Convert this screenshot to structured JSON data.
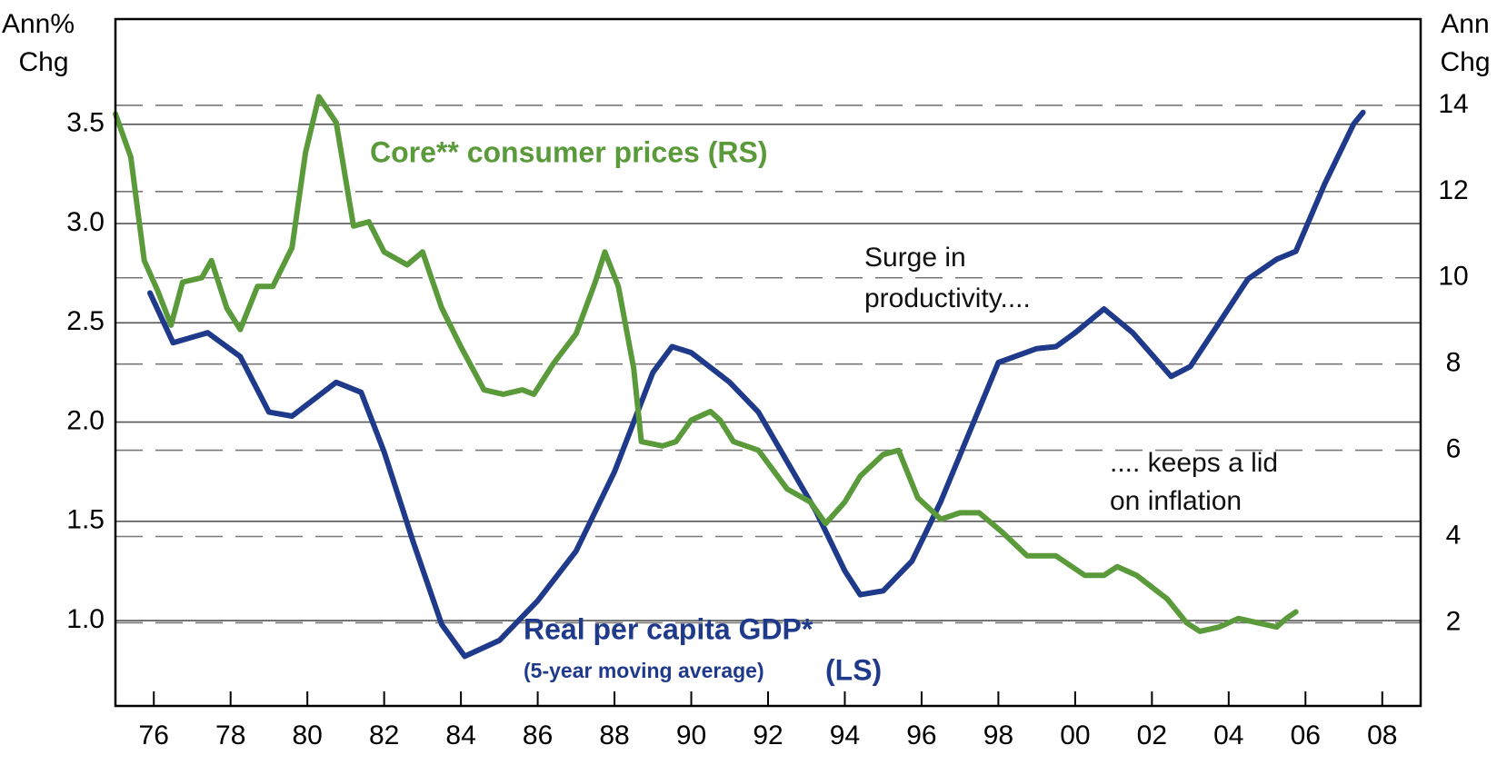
{
  "chart_data": {
    "type": "line",
    "y_axis_label": [
      "Ann%",
      "Chg"
    ],
    "y2_axis_label": [
      "Ann",
      "Chg"
    ],
    "xlim": [
      1975,
      2009
    ],
    "xticks": [
      {
        "value": 1976,
        "label": "76"
      },
      {
        "value": 1978,
        "label": "78"
      },
      {
        "value": 1980,
        "label": "80"
      },
      {
        "value": 1982,
        "label": "82"
      },
      {
        "value": 1984,
        "label": "84"
      },
      {
        "value": 1986,
        "label": "86"
      },
      {
        "value": 1988,
        "label": "88"
      },
      {
        "value": 1990,
        "label": "90"
      },
      {
        "value": 1992,
        "label": "92"
      },
      {
        "value": 1994,
        "label": "94"
      },
      {
        "value": 1996,
        "label": "96"
      },
      {
        "value": 1998,
        "label": "98"
      },
      {
        "value": 2000,
        "label": "00"
      },
      {
        "value": 2002,
        "label": "02"
      },
      {
        "value": 2004,
        "label": "04"
      },
      {
        "value": 2006,
        "label": "06"
      },
      {
        "value": 2008,
        "label": "08"
      }
    ],
    "ylim": [
      0.57,
      4.03
    ],
    "yticks": [
      {
        "value": 1,
        "label": "1.0"
      },
      1.5,
      {
        "value": 2,
        "label": "2.0"
      },
      2.5,
      {
        "value": 3,
        "label": "3.0"
      },
      3.5
    ],
    "y2lim": [
      0.07,
      16
    ],
    "y2ticks": [
      2,
      4,
      6,
      8,
      10,
      12,
      14
    ],
    "grid": true,
    "series": [
      {
        "name": "Real per capita GDP* (5-year moving average)(LS)",
        "color": "#1f3a8a",
        "axis": "y",
        "x": [
          1975.9,
          1976.5,
          1977.4,
          1978.25,
          1979.0,
          1979.6,
          1980.75,
          1981.4,
          1982.0,
          1982.75,
          1983.5,
          1984.1,
          1985.0,
          1986.0,
          1987.0,
          1988.0,
          1989.0,
          1989.5,
          1990.0,
          1991.0,
          1991.75,
          1992.5,
          1993.25,
          1994.0,
          1994.4,
          1995.0,
          1995.75,
          1996.5,
          1997.25,
          1998.0,
          1999.0,
          1999.5,
          2000.0,
          2000.75,
          2001.5,
          2002.5,
          2003.0,
          2003.75,
          2004.5,
          2005.25,
          2005.75,
          2006.5,
          2007.25,
          2007.5
        ],
        "values": [
          2.65,
          2.4,
          2.45,
          2.33,
          2.05,
          2.03,
          2.2,
          2.15,
          1.85,
          1.4,
          0.98,
          0.82,
          0.9,
          1.1,
          1.35,
          1.75,
          2.25,
          2.38,
          2.35,
          2.2,
          2.05,
          1.8,
          1.55,
          1.25,
          1.13,
          1.15,
          1.3,
          1.6,
          1.95,
          2.3,
          2.37,
          2.38,
          2.45,
          2.57,
          2.45,
          2.23,
          2.28,
          2.5,
          2.72,
          2.82,
          2.86,
          3.2,
          3.5,
          3.56
        ]
      },
      {
        "name": "Core** consumer prices (RS)",
        "color": "#5a9a3a",
        "axis": "y2",
        "x": [
          1975.0,
          1975.4,
          1975.75,
          1976.1,
          1976.45,
          1976.75,
          1977.25,
          1977.5,
          1977.9,
          1978.25,
          1978.7,
          1979.1,
          1979.6,
          1979.95,
          1980.3,
          1980.75,
          1981.2,
          1981.6,
          1982.0,
          1982.6,
          1983.0,
          1983.5,
          1984.0,
          1984.6,
          1985.1,
          1985.6,
          1985.9,
          1986.4,
          1987.0,
          1987.5,
          1987.75,
          1988.1,
          1988.5,
          1988.7,
          1989.25,
          1989.6,
          1990.0,
          1990.5,
          1990.75,
          1991.1,
          1991.75,
          1992.5,
          1993.1,
          1993.5,
          1994.0,
          1994.4,
          1995.0,
          1995.4,
          1995.9,
          1996.5,
          1997.0,
          1997.5,
          1998.1,
          1998.75,
          1999.5,
          2000.25,
          2000.75,
          2001.1,
          2001.6,
          2002.4,
          2002.9,
          2003.25,
          2003.75,
          2004.25,
          2004.75,
          2005.25,
          2005.5,
          2005.75
        ],
        "values": [
          13.8,
          12.8,
          10.4,
          9.7,
          8.9,
          9.9,
          10.0,
          10.4,
          9.3,
          8.8,
          9.8,
          9.8,
          10.7,
          12.9,
          14.2,
          13.6,
          11.2,
          11.3,
          10.6,
          10.3,
          10.6,
          9.3,
          8.4,
          7.4,
          7.3,
          7.4,
          7.3,
          8.0,
          8.7,
          9.9,
          10.6,
          9.8,
          7.9,
          6.2,
          6.1,
          6.2,
          6.7,
          6.9,
          6.7,
          6.2,
          6.0,
          5.1,
          4.8,
          4.3,
          4.8,
          5.4,
          5.9,
          6.0,
          4.9,
          4.4,
          4.55,
          4.55,
          4.1,
          3.55,
          3.55,
          3.1,
          3.1,
          3.3,
          3.1,
          2.55,
          2.0,
          1.8,
          1.9,
          2.1,
          2.0,
          1.9,
          2.1,
          2.25
        ]
      }
    ],
    "annotations": [
      {
        "text": "Core** consumer prices (RS)"
      },
      {
        "text": "Surge in"
      },
      {
        "text": "productivity...."
      },
      {
        "text": ".... keeps a lid"
      },
      {
        "text": "on inflation"
      },
      {
        "text": "Real per capita GDP*"
      },
      {
        "text": "(5-year moving average)"
      },
      {
        "text": "(LS)"
      }
    ]
  }
}
